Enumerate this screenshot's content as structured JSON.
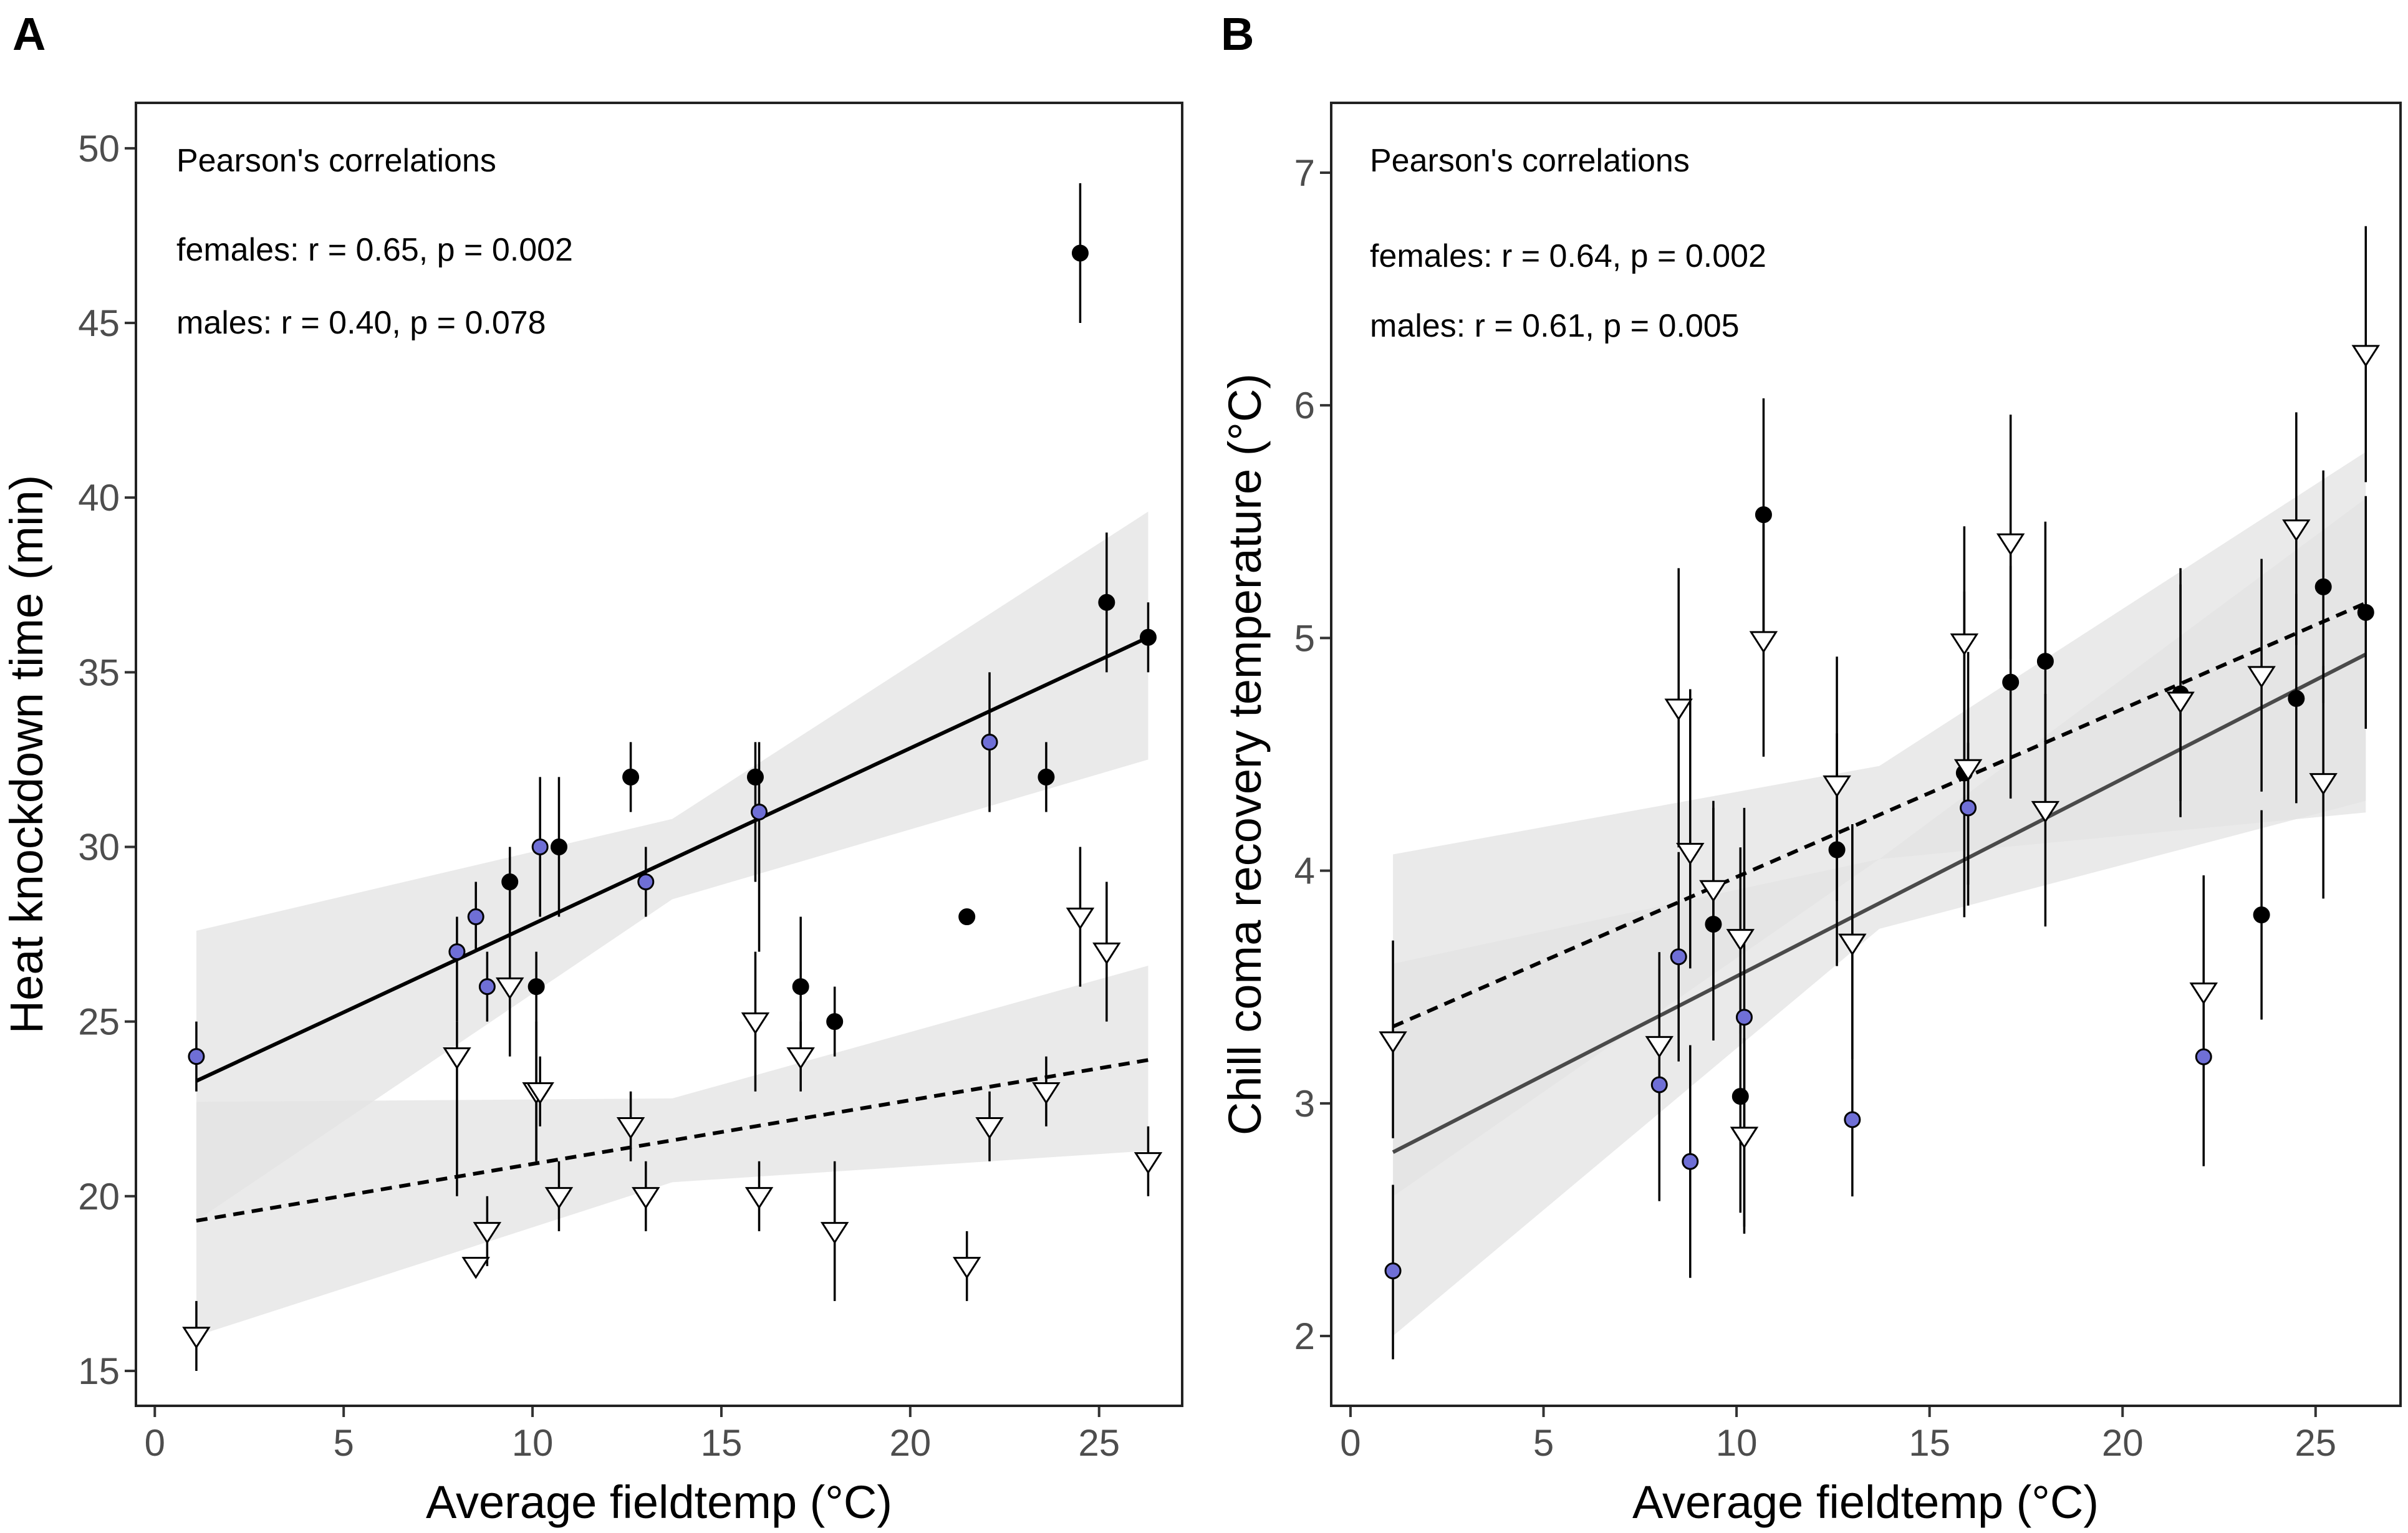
{
  "colors": {
    "female_point": "#000000",
    "male_point_fill": "#ffffff",
    "highlight_point": "#6f6fd6",
    "band": "#e3e3e3",
    "female_line_A": "#000000",
    "female_line_B": "#4a4a4a"
  },
  "chart_data": [
    {
      "panel": "A",
      "type": "scatter",
      "xlabel": "Average fieldtemp (°C)",
      "ylabel": "Heat knockdown time (min)",
      "xlim": [
        -0.5,
        27.2
      ],
      "ylim": [
        14,
        51.3
      ],
      "xticks": [
        0,
        5,
        10,
        15,
        20,
        25
      ],
      "yticks": [
        15,
        20,
        25,
        30,
        35,
        40,
        45,
        50
      ],
      "grid": false,
      "annotation": {
        "title": "Pearson's correlations",
        "females": "females: r = 0.65, p = 0.002",
        "males": "males: r = 0.40, p = 0.078"
      },
      "series": [
        {
          "name": "females",
          "marker": "circle",
          "points": [
            {
              "x": 1.1,
              "y": 24.0,
              "lo": 23.0,
              "hi": 25.0,
              "blue": true
            },
            {
              "x": 8.0,
              "y": 27.0,
              "lo": 25.0,
              "hi": 28.0,
              "blue": true
            },
            {
              "x": 8.5,
              "y": 28.0,
              "lo": 27.0,
              "hi": 29.0,
              "blue": true
            },
            {
              "x": 8.8,
              "y": 26.0,
              "lo": 25.0,
              "hi": 27.0,
              "blue": true
            },
            {
              "x": 9.4,
              "y": 29.0,
              "lo": 28.0,
              "hi": 30.0,
              "blue": false
            },
            {
              "x": 10.1,
              "y": 26.0,
              "lo": 21.0,
              "hi": 27.0,
              "blue": false
            },
            {
              "x": 10.2,
              "y": 30.0,
              "lo": 28.0,
              "hi": 32.0,
              "blue": true
            },
            {
              "x": 10.7,
              "y": 30.0,
              "lo": 28.0,
              "hi": 32.0,
              "blue": false
            },
            {
              "x": 12.6,
              "y": 32.0,
              "lo": 31.0,
              "hi": 33.0,
              "blue": false
            },
            {
              "x": 13.0,
              "y": 29.0,
              "lo": 28.0,
              "hi": 30.0,
              "blue": true
            },
            {
              "x": 15.9,
              "y": 32.0,
              "lo": 29.0,
              "hi": 33.0,
              "blue": false
            },
            {
              "x": 16.0,
              "y": 31.0,
              "lo": 27.0,
              "hi": 33.0,
              "blue": true
            },
            {
              "x": 17.1,
              "y": 26.0,
              "lo": 24.0,
              "hi": 28.0,
              "blue": false
            },
            {
              "x": 18.0,
              "y": 25.0,
              "lo": 24.0,
              "hi": 26.0,
              "blue": false
            },
            {
              "x": 21.5,
              "y": 28.0,
              "lo": null,
              "hi": null,
              "blue": false
            },
            {
              "x": 22.1,
              "y": 33.0,
              "lo": 31.0,
              "hi": 35.0,
              "blue": true
            },
            {
              "x": 23.6,
              "y": 32.0,
              "lo": 31.0,
              "hi": 33.0,
              "blue": false
            },
            {
              "x": 24.5,
              "y": 47.0,
              "lo": 45.0,
              "hi": 49.0,
              "blue": false
            },
            {
              "x": 25.2,
              "y": 37.0,
              "lo": 35.0,
              "hi": 39.0,
              "blue": false
            },
            {
              "x": 26.3,
              "y": 36.0,
              "lo": 35.0,
              "hi": 37.0,
              "blue": false
            }
          ]
        },
        {
          "name": "males",
          "marker": "triangle-down",
          "points": [
            {
              "x": 1.1,
              "y": 16.0,
              "lo": 15.0,
              "hi": 17.0
            },
            {
              "x": 8.0,
              "y": 24.0,
              "lo": 20.0,
              "hi": 25.0
            },
            {
              "x": 8.5,
              "y": 18.0,
              "lo": null,
              "hi": null
            },
            {
              "x": 8.8,
              "y": 19.0,
              "lo": 18.0,
              "hi": 20.0
            },
            {
              "x": 9.4,
              "y": 26.0,
              "lo": 24.0,
              "hi": 28.0
            },
            {
              "x": 10.1,
              "y": 23.0,
              "lo": 21.0,
              "hi": 25.0
            },
            {
              "x": 10.2,
              "y": 23.0,
              "lo": 22.0,
              "hi": 24.0
            },
            {
              "x": 10.7,
              "y": 20.0,
              "lo": 19.0,
              "hi": 21.0
            },
            {
              "x": 12.6,
              "y": 22.0,
              "lo": 21.0,
              "hi": 23.0
            },
            {
              "x": 13.0,
              "y": 20.0,
              "lo": 19.0,
              "hi": 21.0
            },
            {
              "x": 15.9,
              "y": 25.0,
              "lo": 23.0,
              "hi": 27.0
            },
            {
              "x": 16.0,
              "y": 20.0,
              "lo": 19.0,
              "hi": 21.0
            },
            {
              "x": 17.1,
              "y": 24.0,
              "lo": 23.0,
              "hi": 25.0
            },
            {
              "x": 18.0,
              "y": 19.0,
              "lo": 17.0,
              "hi": 21.0
            },
            {
              "x": 21.5,
              "y": 18.0,
              "lo": 17.0,
              "hi": 19.0
            },
            {
              "x": 22.1,
              "y": 22.0,
              "lo": 21.0,
              "hi": 23.0
            },
            {
              "x": 23.6,
              "y": 23.0,
              "lo": 22.0,
              "hi": 24.0
            },
            {
              "x": 24.5,
              "y": 28.0,
              "lo": 26.0,
              "hi": 30.0
            },
            {
              "x": 25.2,
              "y": 27.0,
              "lo": 25.0,
              "hi": 29.0
            },
            {
              "x": 26.3,
              "y": 21.0,
              "lo": 20.0,
              "hi": 22.0
            }
          ]
        }
      ],
      "fits": [
        {
          "name": "females",
          "style": "solid",
          "x": [
            1.1,
            26.3
          ],
          "y": [
            23.3,
            36.0
          ],
          "band": {
            "x": [
              1.1,
              13.7,
              26.3
            ],
            "lo": [
              19.3,
              28.5,
              32.5
            ],
            "hi": [
              27.6,
              30.8,
              39.6
            ]
          }
        },
        {
          "name": "males",
          "style": "dashed",
          "x": [
            1.1,
            26.3
          ],
          "y": [
            19.3,
            23.9
          ],
          "band": {
            "x": [
              1.1,
              13.7,
              26.3
            ],
            "lo": [
              16.0,
              20.4,
              21.3
            ],
            "hi": [
              22.7,
              22.8,
              26.6
            ]
          }
        }
      ]
    },
    {
      "panel": "B",
      "type": "scatter",
      "xlabel": "Average fieldtemp (°C)",
      "ylabel": "Chill coma recovery temperature (°C)",
      "xlim": [
        -0.5,
        27.2
      ],
      "ylim": [
        1.7,
        7.3
      ],
      "xticks": [
        0,
        5,
        10,
        15,
        20,
        25
      ],
      "yticks": [
        2,
        3,
        4,
        5,
        6,
        7
      ],
      "grid": false,
      "annotation": {
        "title": "Pearson's correlations",
        "females": "females: r = 0.64, p = 0.002",
        "males": "males: r = 0.61, p = 0.005"
      },
      "series": [
        {
          "name": "females",
          "marker": "circle",
          "points": [
            {
              "x": 1.1,
              "y": 2.28,
              "lo": 1.9,
              "hi": 2.65,
              "blue": true
            },
            {
              "x": 8.0,
              "y": 3.08,
              "lo": 2.58,
              "hi": 3.58,
              "blue": true
            },
            {
              "x": 8.5,
              "y": 3.63,
              "lo": 3.18,
              "hi": 4.08,
              "blue": true
            },
            {
              "x": 8.8,
              "y": 2.75,
              "lo": 2.25,
              "hi": 3.25,
              "blue": true
            },
            {
              "x": 9.4,
              "y": 3.77,
              "lo": 3.27,
              "hi": 4.27,
              "blue": false
            },
            {
              "x": 10.1,
              "y": 3.03,
              "lo": 2.53,
              "hi": 3.53,
              "blue": false
            },
            {
              "x": 10.2,
              "y": 3.37,
              "lo": 2.47,
              "hi": 4.27,
              "blue": true
            },
            {
              "x": 10.7,
              "y": 5.53,
              "lo": 5.03,
              "hi": 6.03,
              "blue": false
            },
            {
              "x": 12.6,
              "y": 4.09,
              "lo": 3.59,
              "hi": 4.59,
              "blue": false
            },
            {
              "x": 13.0,
              "y": 2.93,
              "lo": 2.6,
              "hi": 4.2,
              "blue": true
            },
            {
              "x": 15.9,
              "y": 4.42,
              "lo": 3.8,
              "hi": 5.2,
              "blue": false
            },
            {
              "x": 16.0,
              "y": 4.27,
              "lo": 3.85,
              "hi": 4.55,
              "blue": true
            },
            {
              "x": 17.1,
              "y": 4.81,
              "lo": 4.31,
              "hi": 5.31,
              "blue": false
            },
            {
              "x": 18.0,
              "y": 4.9,
              "lo": 4.3,
              "hi": 5.5,
              "blue": false
            },
            {
              "x": 21.5,
              "y": 4.76,
              "lo": 4.3,
              "hi": 5.3,
              "blue": false
            },
            {
              "x": 22.1,
              "y": 3.2,
              "lo": 2.73,
              "hi": 3.67,
              "blue": true
            },
            {
              "x": 23.6,
              "y": 3.81,
              "lo": 3.36,
              "hi": 4.26,
              "blue": false
            },
            {
              "x": 24.5,
              "y": 4.74,
              "lo": 4.29,
              "hi": 5.19,
              "blue": false
            },
            {
              "x": 25.2,
              "y": 5.22,
              "lo": 4.72,
              "hi": 5.72,
              "blue": false
            },
            {
              "x": 26.3,
              "y": 5.11,
              "lo": 4.61,
              "hi": 5.61,
              "blue": false
            }
          ]
        },
        {
          "name": "males",
          "marker": "triangle-down",
          "points": [
            {
              "x": 1.1,
              "y": 3.27,
              "lo": 2.85,
              "hi": 3.7
            },
            {
              "x": 8.0,
              "y": 3.25,
              "lo": 2.85,
              "hi": 3.65
            },
            {
              "x": 8.5,
              "y": 4.7,
              "lo": 4.1,
              "hi": 5.3
            },
            {
              "x": 8.8,
              "y": 4.08,
              "lo": 3.58,
              "hi": 4.78
            },
            {
              "x": 9.4,
              "y": 3.92,
              "lo": 3.5,
              "hi": 4.3
            },
            {
              "x": 10.1,
              "y": 3.71,
              "lo": 3.3,
              "hi": 4.1
            },
            {
              "x": 10.2,
              "y": 2.86,
              "lo": 2.44,
              "hi": 3.28
            },
            {
              "x": 10.7,
              "y": 4.99,
              "lo": 4.49,
              "hi": 5.49
            },
            {
              "x": 12.6,
              "y": 4.37,
              "lo": 3.87,
              "hi": 4.92
            },
            {
              "x": 13.0,
              "y": 3.69,
              "lo": 3.19,
              "hi": 4.19
            },
            {
              "x": 15.9,
              "y": 4.98,
              "lo": 4.48,
              "hi": 5.48
            },
            {
              "x": 16.0,
              "y": 4.44,
              "lo": 3.94,
              "hi": 4.94
            },
            {
              "x": 17.1,
              "y": 5.41,
              "lo": 4.91,
              "hi": 5.96
            },
            {
              "x": 18.0,
              "y": 4.26,
              "lo": 3.76,
              "hi": 4.76
            },
            {
              "x": 21.5,
              "y": 4.73,
              "lo": 4.23,
              "hi": 5.23
            },
            {
              "x": 22.1,
              "y": 3.48,
              "lo": 2.98,
              "hi": 3.98
            },
            {
              "x": 23.6,
              "y": 4.84,
              "lo": 4.34,
              "hi": 5.34
            },
            {
              "x": 24.5,
              "y": 5.47,
              "lo": 4.97,
              "hi": 5.97
            },
            {
              "x": 25.2,
              "y": 4.38,
              "lo": 3.88,
              "hi": 4.88
            },
            {
              "x": 26.3,
              "y": 6.22,
              "lo": 5.67,
              "hi": 6.77
            }
          ]
        }
      ],
      "fits": [
        {
          "name": "females",
          "style": "solid",
          "x": [
            1.1,
            26.3
          ],
          "y": [
            2.79,
            4.93
          ],
          "band": {
            "x": [
              1.1,
              13.7,
              26.3
            ],
            "lo": [
              2.0,
              3.75,
              4.3
            ],
            "hi": [
              3.6,
              4.05,
              5.6
            ]
          }
        },
        {
          "name": "males",
          "style": "dashed",
          "x": [
            1.1,
            26.3
          ],
          "y": [
            3.33,
            5.15
          ],
          "band": {
            "x": [
              1.1,
              13.7,
              26.3
            ],
            "lo": [
              2.6,
              4.05,
              4.25
            ],
            "hi": [
              4.07,
              4.45,
              5.8
            ]
          }
        }
      ]
    }
  ]
}
